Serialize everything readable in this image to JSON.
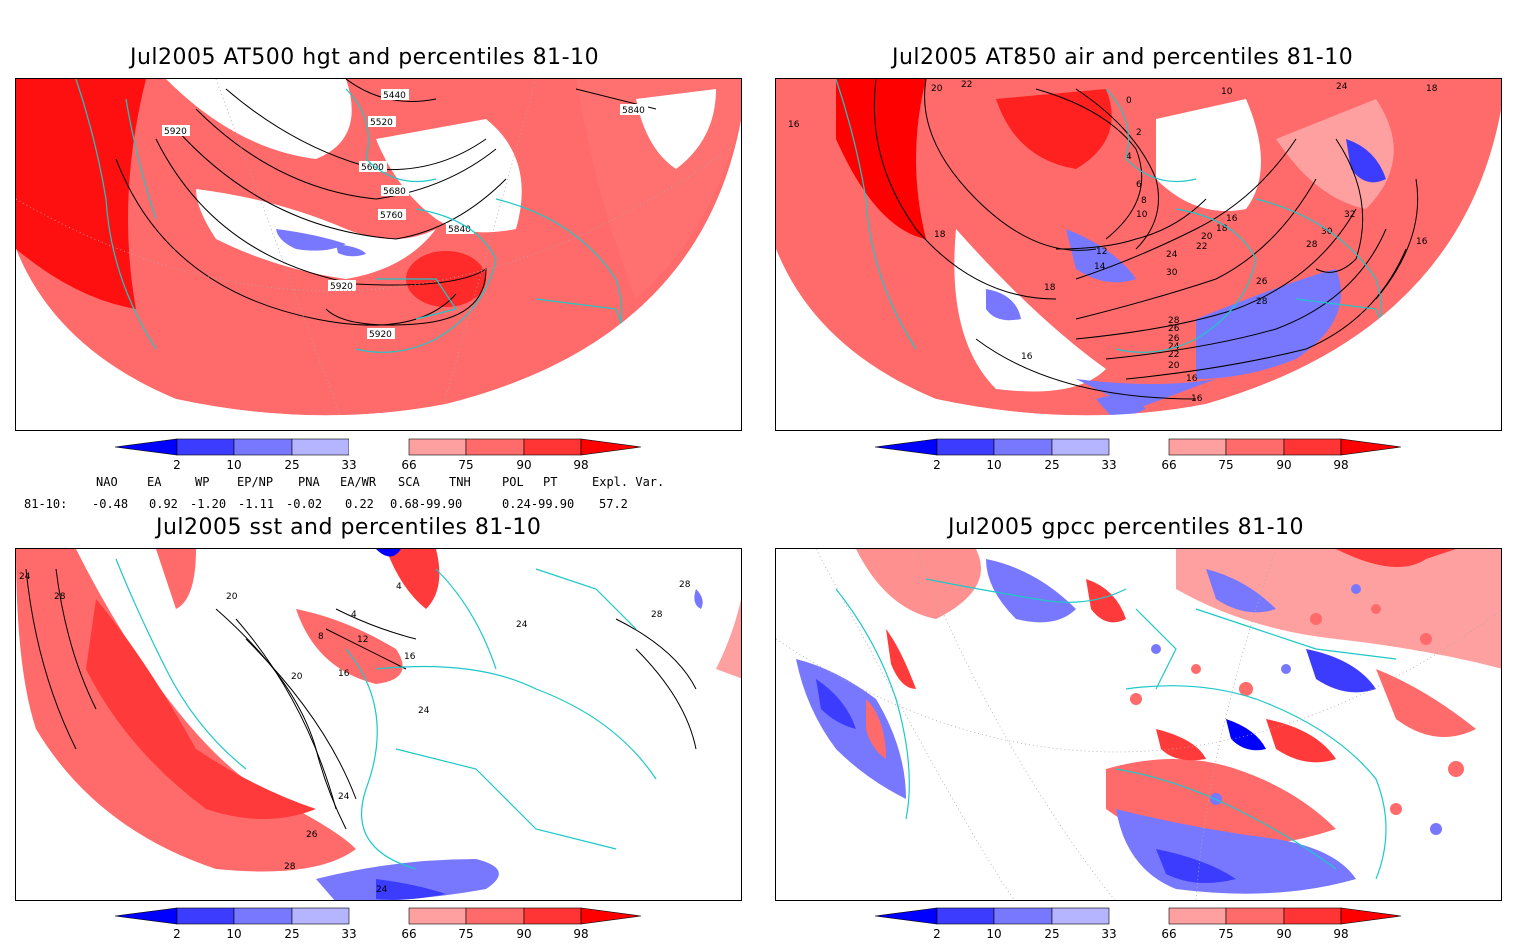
{
  "panels": {
    "p1": {
      "title": "Jul2005 AT500 hgt and percentiles 81-10",
      "contour_labels": [
        "5440",
        "5520",
        "5600",
        "5680",
        "5760",
        "5840",
        "5840",
        "5920",
        "5920",
        "5920"
      ]
    },
    "p2": {
      "title": "Jul2005 AT850 air and percentiles 81-10",
      "contour_labels": [
        "20",
        "22",
        "16",
        "18",
        "18",
        "16",
        "16",
        "12",
        "14",
        "10",
        "8",
        "6",
        "4",
        "2",
        "0",
        "10",
        "30",
        "24",
        "22",
        "20",
        "18",
        "16",
        "26",
        "28",
        "32",
        "30",
        "28",
        "16",
        "18",
        "24",
        "26",
        "28",
        "26",
        "24",
        "22",
        "20",
        "16"
      ]
    },
    "p3": {
      "title": "Jul2005 sst and percentiles 81-10",
      "contour_labels": [
        "24",
        "28",
        "20",
        "4",
        "4",
        "8",
        "12",
        "16",
        "16",
        "20",
        "24",
        "24",
        "24",
        "26",
        "28",
        "24",
        "28",
        "28"
      ]
    },
    "p4": {
      "title": "Jul2005 gpcc percentiles 81-10"
    }
  },
  "colorbar": {
    "ticks": [
      "2",
      "10",
      "25",
      "33",
      "66",
      "75",
      "90",
      "98"
    ],
    "colors": {
      "below2": "#0000ff",
      "c2_10": "#3c3cff",
      "c10_25": "#7878ff",
      "c25_33": "#b4b4ff",
      "neutral": "#ffffff",
      "c66_75": "#ffa0a0",
      "c75_90": "#ff6a6a",
      "c90_98": "#ff3434",
      "above98": "#ff0000"
    }
  },
  "indices": {
    "headers": [
      "NAO",
      "EA",
      "WP",
      "EP/NP",
      "PNA",
      "EA/WR",
      "SCA",
      "TNH",
      "POL",
      "PT",
      "Expl. Var."
    ],
    "row_label": "81-10:",
    "values": [
      "-0.48",
      "0.92",
      "-1.20",
      "-1.11",
      "-0.02",
      "0.22",
      "0.68-99.90",
      "",
      "0.24-99.90",
      "",
      "57.2"
    ]
  }
}
